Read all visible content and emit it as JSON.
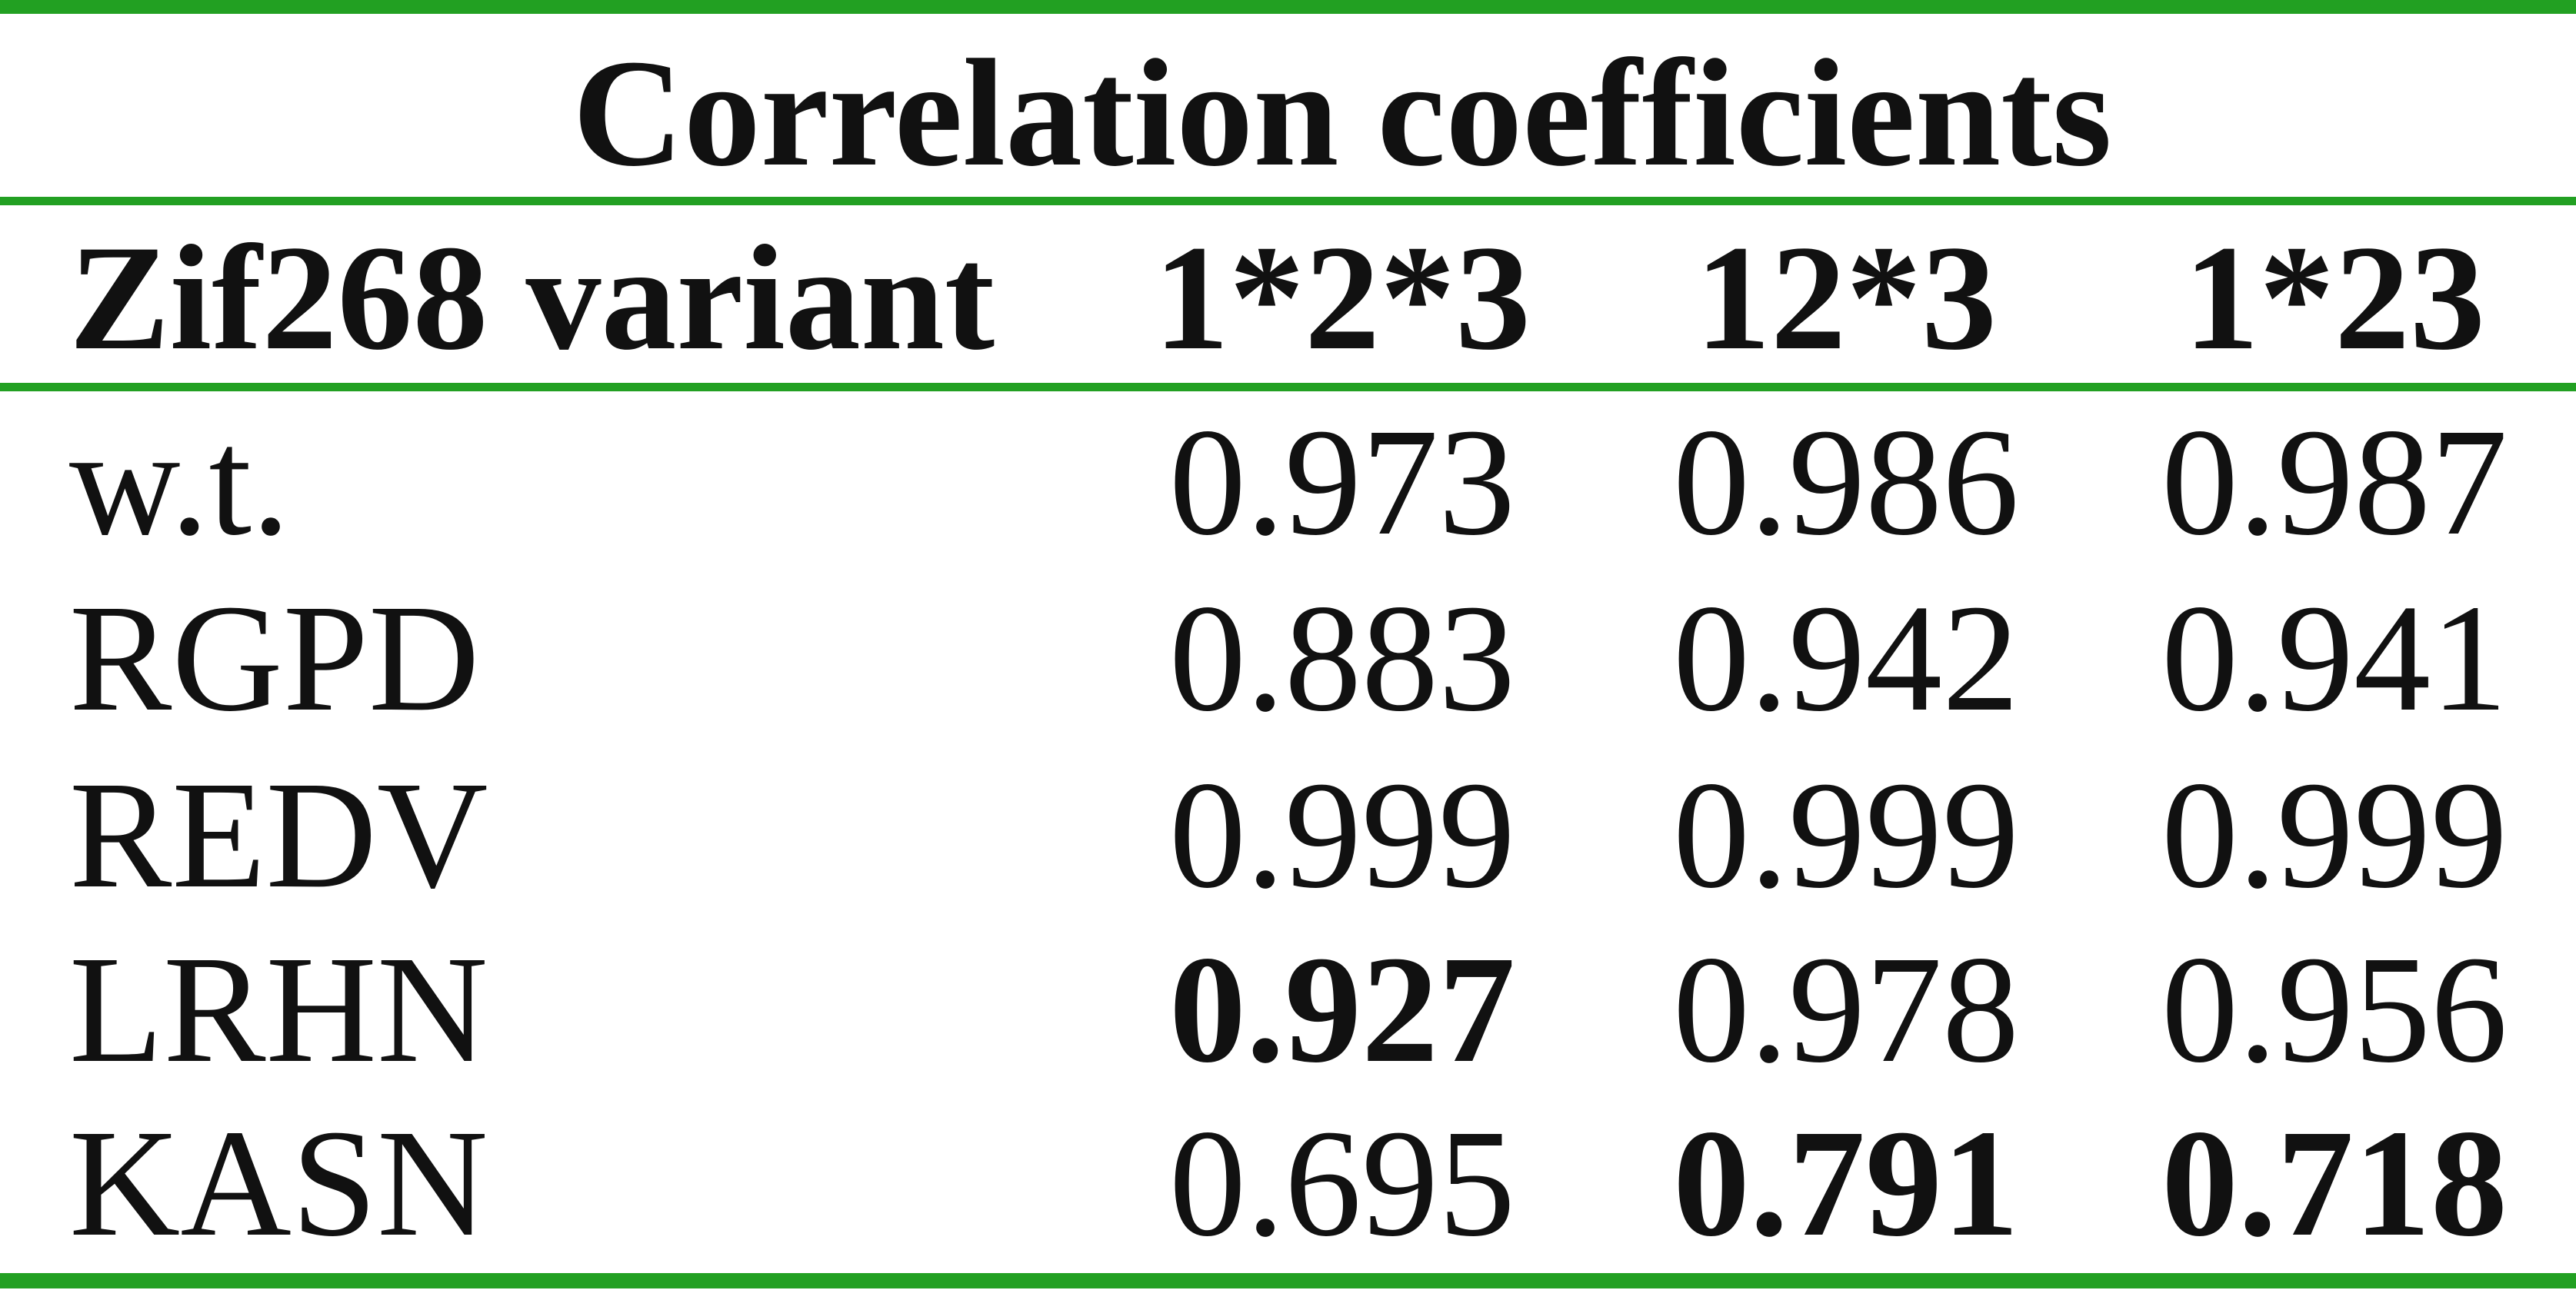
{
  "table": {
    "title": "Correlation coefficients",
    "header": [
      "Zif268 variant",
      "1*2*3",
      "12*3",
      "1*23"
    ],
    "rows": [
      [
        "w.t.",
        "0.973",
        "0.986",
        "0.987"
      ],
      [
        "RGPD",
        "0.883",
        "0.942",
        "0.941"
      ],
      [
        "REDV",
        "0.999",
        "0.999",
        "0.999"
      ],
      [
        "LRHN",
        "0.927",
        "0.978",
        "0.956"
      ],
      [
        "KASN",
        "0.695",
        "0.791",
        "0.718"
      ]
    ],
    "bold": [
      [
        false,
        false,
        false,
        false
      ],
      [
        false,
        false,
        false,
        false
      ],
      [
        false,
        false,
        false,
        false
      ],
      [
        false,
        true,
        false,
        false
      ],
      [
        false,
        false,
        true,
        true
      ]
    ]
  }
}
